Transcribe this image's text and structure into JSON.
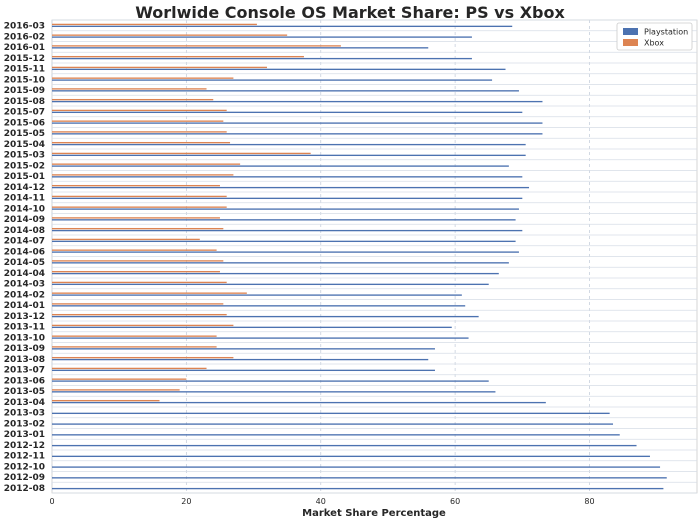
{
  "chart_data": {
    "type": "bar",
    "orientation": "horizontal",
    "title": "Worlwide Console OS Market Share: PS vs Xbox",
    "xlabel": "Market Share Percentage",
    "ylabel": "",
    "xlim": [
      0,
      96
    ],
    "xticks": [
      0,
      20,
      40,
      60,
      80
    ],
    "grid": true,
    "legend_position": "top-right",
    "categories": [
      "2016-03",
      "2016-02",
      "2016-01",
      "2015-12",
      "2015-11",
      "2015-10",
      "2015-09",
      "2015-08",
      "2015-07",
      "2015-06",
      "2015-05",
      "2015-04",
      "2015-03",
      "2015-02",
      "2015-01",
      "2014-12",
      "2014-11",
      "2014-10",
      "2014-09",
      "2014-08",
      "2014-07",
      "2014-06",
      "2014-05",
      "2014-04",
      "2014-03",
      "2014-02",
      "2014-01",
      "2013-12",
      "2013-11",
      "2013-10",
      "2013-09",
      "2013-08",
      "2013-07",
      "2013-06",
      "2013-05",
      "2013-04",
      "2013-03",
      "2013-02",
      "2013-01",
      "2012-12",
      "2012-11",
      "2012-10",
      "2012-09",
      "2012-08"
    ],
    "series": [
      {
        "name": "Playstation",
        "color": "#4c72b0",
        "values": [
          68.5,
          62.5,
          56.0,
          62.5,
          67.5,
          65.5,
          69.5,
          73.0,
          70.0,
          73.0,
          73.0,
          70.5,
          70.5,
          68.0,
          70.0,
          71.0,
          70.0,
          69.5,
          69.0,
          70.0,
          69.0,
          69.5,
          68.0,
          66.5,
          65.0,
          61.0,
          61.5,
          63.5,
          59.5,
          62.0,
          57.0,
          56.0,
          57.0,
          65.0,
          66.0,
          73.5,
          83.0,
          83.5,
          84.5,
          87.0,
          89.0,
          90.5,
          91.5,
          91.0
        ]
      },
      {
        "name": "Xbox",
        "color": "#dd8452",
        "values": [
          30.5,
          35.0,
          43.0,
          37.5,
          32.0,
          27.0,
          23.0,
          24.0,
          26.0,
          25.5,
          26.0,
          26.5,
          38.5,
          28.0,
          27.0,
          25.0,
          26.0,
          26.0,
          25.0,
          25.5,
          22.0,
          24.5,
          25.5,
          25.0,
          26.0,
          29.0,
          25.5,
          26.0,
          27.0,
          24.5,
          24.5,
          27.0,
          23.0,
          20.0,
          19.0,
          16.0,
          0,
          0,
          0,
          0,
          0,
          0,
          0,
          0
        ]
      }
    ]
  }
}
